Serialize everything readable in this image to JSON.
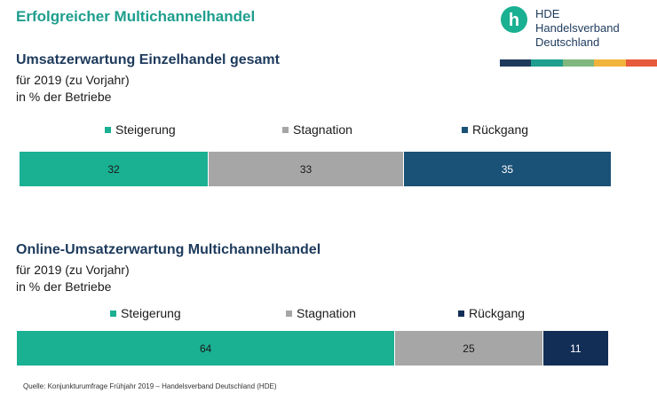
{
  "header": {
    "title": "Erfolgreicher Multichannelhandel"
  },
  "logo": {
    "letter": "h",
    "lines": [
      "HDE",
      "Handelsverband",
      "Deutschland"
    ],
    "stripe_colors": [
      "#1d3a5c",
      "#1e9e8e",
      "#7fb77e",
      "#f2b33d",
      "#e85a3c"
    ]
  },
  "chart_data": [
    {
      "type": "bar",
      "stacked": true,
      "orientation": "horizontal",
      "title": "Umsatzerwartung Einzelhandel gesamt",
      "subtitle_lines": [
        "für 2019 (zu Vorjahr)",
        "in % der Betriebe"
      ],
      "categories": [
        ""
      ],
      "series": [
        {
          "name": "Steigerung",
          "values": [
            32
          ],
          "color": "#1ab092",
          "label_color": "#1a1a1a"
        },
        {
          "name": "Stagnation",
          "values": [
            33
          ],
          "color": "#a6a6a6",
          "label_color": "#1a1a1a"
        },
        {
          "name": "Rückgang",
          "values": [
            35
          ],
          "color": "#1a5176",
          "label_color": "#ffffff"
        }
      ],
      "xlim": [
        0,
        100
      ],
      "legend": "top",
      "grid": false
    },
    {
      "type": "bar",
      "stacked": true,
      "orientation": "horizontal",
      "title": "Online-Umsatzerwartung Multichannelhandel",
      "subtitle_lines": [
        "für 2019 (zu Vorjahr)",
        "in % der Betriebe"
      ],
      "categories": [
        ""
      ],
      "series": [
        {
          "name": "Steigerung",
          "values": [
            64
          ],
          "color": "#1ab092",
          "label_color": "#1a1a1a"
        },
        {
          "name": "Stagnation",
          "values": [
            25
          ],
          "color": "#a6a6a6",
          "label_color": "#1a1a1a"
        },
        {
          "name": "Rückgang",
          "values": [
            11
          ],
          "color": "#122e56",
          "label_color": "#ffffff"
        }
      ],
      "xlim": [
        0,
        100
      ],
      "legend": "top",
      "grid": false
    }
  ],
  "footer": {
    "source": "Quelle: Konjunkturumfrage Frühjahr 2019 – Handelsverband Deutschland (HDE)"
  }
}
